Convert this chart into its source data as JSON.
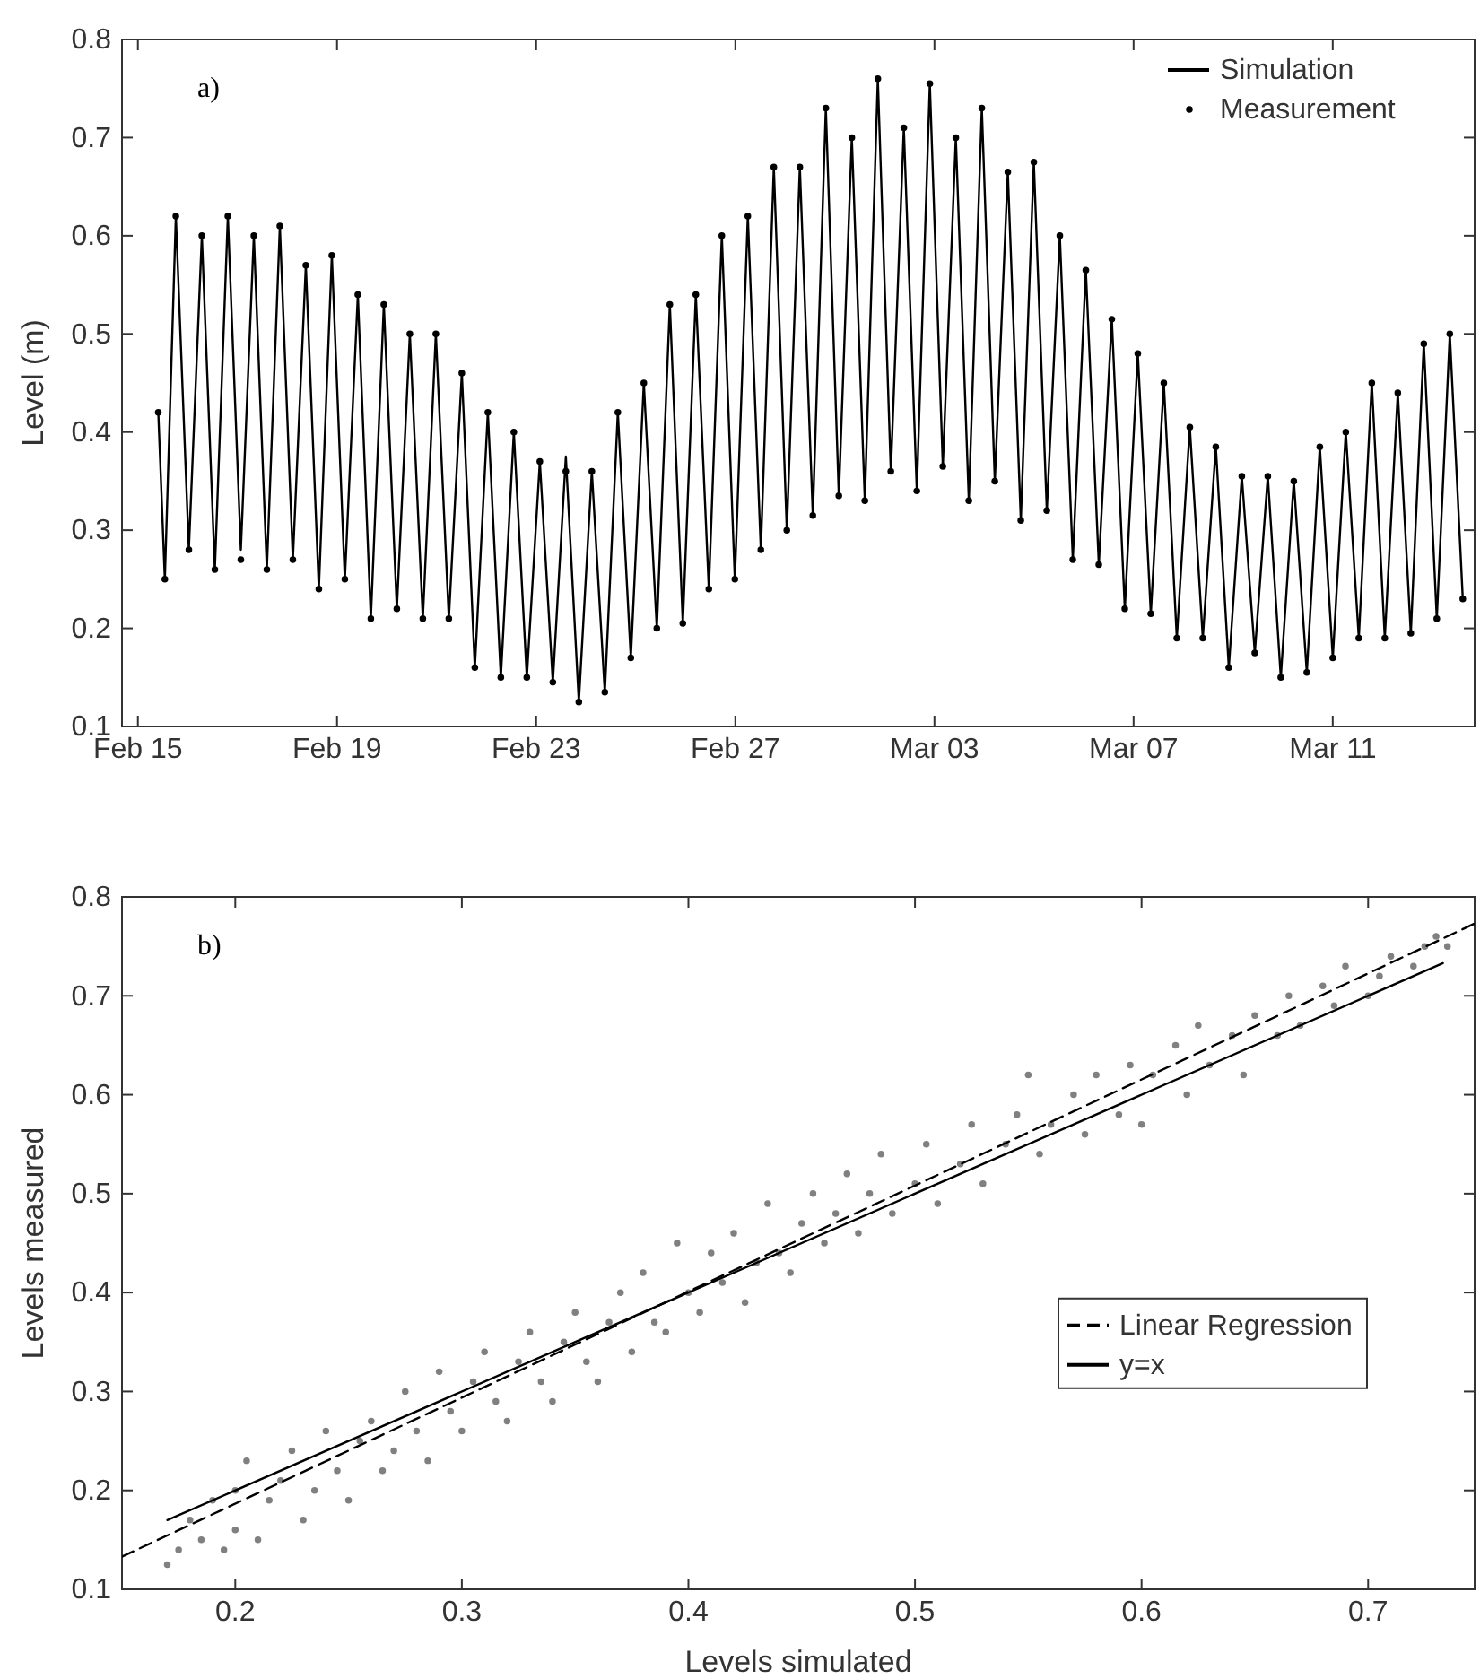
{
  "chart_data": [
    {
      "type": "line",
      "ylabel": "Level (m)",
      "annotations": [
        "a)"
      ],
      "legend": "top right",
      "xlim": [
        "--02-14T16:20",
        "--03-13T20:24"
      ],
      "xticks": [
        {
          "value": "--02-15",
          "label": "Feb 15"
        },
        {
          "value": "--02-19",
          "label": "Feb 19"
        },
        {
          "value": "--02-23",
          "label": "Feb 23"
        },
        {
          "value": "--02-27",
          "label": "Feb 27"
        },
        {
          "value": "--03-03",
          "label": "Mar 03"
        },
        {
          "value": "--03-07",
          "label": "Mar 07"
        },
        {
          "value": "--03-11",
          "label": "Mar 11"
        }
      ],
      "ylim": [
        0.1,
        0.8
      ],
      "yticks": [
        0.1,
        0.2,
        0.3,
        0.4,
        0.5,
        0.6,
        0.7,
        0.8
      ],
      "x": [
        "--02-15T09:50",
        "--02-15T13:00",
        "--02-15T18:18",
        "--02-16T00:34",
        "--02-16T06:50",
        "--02-16T13:06",
        "--02-16T19:22",
        "--02-17T01:38",
        "--02-17T07:54",
        "--02-17T14:10",
        "--02-17T20:26",
        "--02-18T02:42",
        "--02-18T08:58",
        "--02-18T15:14",
        "--02-18T21:30",
        "--02-19T03:46",
        "--02-19T10:02",
        "--02-19T16:18",
        "--02-19T22:34",
        "--02-20T04:50",
        "--02-20T11:06",
        "--02-20T17:22",
        "--02-20T23:38",
        "--02-21T05:54",
        "--02-21T12:10",
        "--02-21T18:26",
        "--02-22T00:42",
        "--02-22T06:58",
        "--02-22T13:14",
        "--02-22T19:30",
        "--02-23T01:46",
        "--02-23T08:02",
        "--02-23T14:18",
        "--02-23T20:34",
        "--02-24T02:50",
        "--02-24T09:06",
        "--02-24T15:22",
        "--02-24T21:38",
        "--02-25T03:54",
        "--02-25T10:10",
        "--02-25T16:26",
        "--02-25T22:42",
        "--02-26T04:58",
        "--02-26T11:14",
        "--02-26T17:30",
        "--02-26T23:46",
        "--02-27T06:02",
        "--02-27T12:18",
        "--02-27T18:34",
        "--02-28T00:50",
        "--02-28T07:06",
        "--02-28T13:22",
        "--02-28T19:38",
        "--03-01T01:54",
        "--03-01T08:10",
        "--03-01T14:26",
        "--03-01T20:42",
        "--03-02T02:58",
        "--03-02T09:14",
        "--03-02T15:30",
        "--03-02T21:46",
        "--03-03T04:02",
        "--03-03T10:18",
        "--03-03T16:34",
        "--03-03T22:50",
        "--03-04T05:06",
        "--03-04T11:22",
        "--03-04T17:38",
        "--03-04T23:54",
        "--03-05T06:10",
        "--03-05T12:26",
        "--03-05T18:42",
        "--03-06T00:58",
        "--03-06T07:14",
        "--03-06T13:30",
        "--03-06T19:46",
        "--03-07T02:02",
        "--03-07T08:18",
        "--03-07T14:34",
        "--03-07T20:50",
        "--03-08T03:06",
        "--03-08T09:22",
        "--03-08T15:38",
        "--03-08T21:54",
        "--03-09T04:10",
        "--03-09T10:26",
        "--03-09T16:42",
        "--03-09T22:58",
        "--03-10T05:14",
        "--03-10T11:30",
        "--03-10T17:46",
        "--03-11T00:02",
        "--03-11T06:18",
        "--03-11T12:34",
        "--03-11T18:50",
        "--03-12T01:06",
        "--03-12T07:22",
        "--03-12T13:38",
        "--03-12T19:54",
        "--03-13T02:10",
        "--03-13T08:26",
        "--03-13T14:42"
      ],
      "series": [
        {
          "name": "Simulation",
          "color": "#000000",
          "line_style": "solid",
          "values": [
            0.42,
            0.25,
            0.62,
            0.28,
            0.6,
            0.26,
            0.62,
            0.28,
            0.6,
            0.26,
            0.61,
            0.27,
            0.57,
            0.24,
            0.58,
            0.25,
            0.54,
            0.21,
            0.53,
            0.22,
            0.5,
            0.21,
            0.5,
            0.21,
            0.46,
            0.16,
            0.42,
            0.15,
            0.4,
            0.15,
            0.37,
            0.145,
            0.375,
            0.125,
            0.36,
            0.135,
            0.42,
            0.17,
            0.45,
            0.2,
            0.53,
            0.205,
            0.54,
            0.24,
            0.6,
            0.25,
            0.62,
            0.28,
            0.67,
            0.3,
            0.67,
            0.315,
            0.73,
            0.335,
            0.7,
            0.33,
            0.76,
            0.36,
            0.71,
            0.34,
            0.755,
            0.365,
            0.7,
            0.33,
            0.73,
            0.35,
            0.665,
            0.31,
            0.675,
            0.32,
            0.6,
            0.27,
            0.565,
            0.265,
            0.515,
            0.22,
            0.48,
            0.215,
            0.45,
            0.19,
            0.405,
            0.19,
            0.385,
            0.16,
            0.355,
            0.175,
            0.355,
            0.15,
            0.35,
            0.155,
            0.385,
            0.17,
            0.4,
            0.19,
            0.45,
            0.19,
            0.44,
            0.195,
            0.49,
            0.21,
            0.5,
            0.23
          ]
        },
        {
          "name": "Measurement",
          "type": "scatter",
          "color": "#000000",
          "marker": "circle",
          "values": [
            0.42,
            0.25,
            0.62,
            0.28,
            0.6,
            0.26,
            0.62,
            0.27,
            0.6,
            0.26,
            0.61,
            0.27,
            0.57,
            0.24,
            0.58,
            0.25,
            0.54,
            0.21,
            0.53,
            0.22,
            0.5,
            0.21,
            0.5,
            0.21,
            0.46,
            0.16,
            0.42,
            0.15,
            0.4,
            0.15,
            0.37,
            0.145,
            0.36,
            0.125,
            0.36,
            0.135,
            0.42,
            0.17,
            0.45,
            0.2,
            0.53,
            0.205,
            0.54,
            0.24,
            0.6,
            0.25,
            0.62,
            0.28,
            0.67,
            0.3,
            0.67,
            0.315,
            0.73,
            0.335,
            0.7,
            0.33,
            0.76,
            0.36,
            0.71,
            0.34,
            0.755,
            0.365,
            0.7,
            0.33,
            0.73,
            0.35,
            0.665,
            0.31,
            0.675,
            0.32,
            0.6,
            0.27,
            0.565,
            0.265,
            0.515,
            0.22,
            0.48,
            0.215,
            0.45,
            0.19,
            0.405,
            0.19,
            0.385,
            0.16,
            0.355,
            0.175,
            0.355,
            0.15,
            0.35,
            0.155,
            0.385,
            0.17,
            0.4,
            0.19,
            0.45,
            0.19,
            0.44,
            0.195,
            0.49,
            0.21,
            0.5,
            0.23
          ]
        }
      ]
    },
    {
      "type": "scatter",
      "xlabel": "Levels simulated",
      "ylabel": "Levels measured",
      "annotations": [
        "b)"
      ],
      "legend": "right",
      "xlim": [
        0.15,
        0.747
      ],
      "xticks": [
        0.2,
        0.3,
        0.4,
        0.5,
        0.6,
        0.7
      ],
      "ylim": [
        0.1,
        0.8
      ],
      "yticks": [
        0.1,
        0.2,
        0.3,
        0.4,
        0.5,
        0.6,
        0.7,
        0.8
      ],
      "series": [
        {
          "color": "#808080",
          "marker": "circle",
          "x": [
            0.17,
            0.175,
            0.18,
            0.185,
            0.19,
            0.195,
            0.2,
            0.2,
            0.205,
            0.21,
            0.215,
            0.22,
            0.225,
            0.23,
            0.235,
            0.24,
            0.245,
            0.25,
            0.255,
            0.26,
            0.265,
            0.27,
            0.275,
            0.28,
            0.285,
            0.29,
            0.295,
            0.3,
            0.305,
            0.31,
            0.315,
            0.32,
            0.325,
            0.33,
            0.335,
            0.34,
            0.345,
            0.35,
            0.355,
            0.36,
            0.365,
            0.37,
            0.375,
            0.38,
            0.385,
            0.39,
            0.395,
            0.4,
            0.405,
            0.41,
            0.415,
            0.42,
            0.425,
            0.43,
            0.435,
            0.44,
            0.445,
            0.45,
            0.455,
            0.46,
            0.465,
            0.47,
            0.475,
            0.48,
            0.485,
            0.49,
            0.5,
            0.505,
            0.51,
            0.52,
            0.525,
            0.53,
            0.54,
            0.545,
            0.55,
            0.555,
            0.56,
            0.57,
            0.575,
            0.58,
            0.59,
            0.595,
            0.6,
            0.605,
            0.615,
            0.62,
            0.625,
            0.63,
            0.64,
            0.645,
            0.65,
            0.66,
            0.665,
            0.67,
            0.68,
            0.685,
            0.69,
            0.7,
            0.705,
            0.71,
            0.72,
            0.725,
            0.73,
            0.735
          ],
          "values": [
            0.125,
            0.14,
            0.17,
            0.15,
            0.19,
            0.14,
            0.16,
            0.2,
            0.23,
            0.15,
            0.19,
            0.21,
            0.24,
            0.17,
            0.2,
            0.26,
            0.22,
            0.19,
            0.25,
            0.27,
            0.22,
            0.24,
            0.3,
            0.26,
            0.23,
            0.32,
            0.28,
            0.26,
            0.31,
            0.34,
            0.29,
            0.27,
            0.33,
            0.36,
            0.31,
            0.29,
            0.35,
            0.38,
            0.33,
            0.31,
            0.37,
            0.4,
            0.34,
            0.42,
            0.37,
            0.36,
            0.45,
            0.4,
            0.38,
            0.44,
            0.41,
            0.46,
            0.39,
            0.43,
            0.49,
            0.44,
            0.42,
            0.47,
            0.5,
            0.45,
            0.48,
            0.52,
            0.46,
            0.5,
            0.54,
            0.48,
            0.51,
            0.55,
            0.49,
            0.53,
            0.57,
            0.51,
            0.55,
            0.58,
            0.62,
            0.54,
            0.57,
            0.6,
            0.56,
            0.62,
            0.58,
            0.63,
            0.57,
            0.62,
            0.65,
            0.6,
            0.67,
            0.63,
            0.66,
            0.62,
            0.68,
            0.66,
            0.7,
            0.67,
            0.71,
            0.69,
            0.73,
            0.7,
            0.72,
            0.74,
            0.73,
            0.75,
            0.76,
            0.75
          ]
        },
        {
          "name": "Linear Regression",
          "type": "line",
          "color": "#000000",
          "line_style": "dashed",
          "x": [
            0.15,
            0.747
          ],
          "values": [
            0.133,
            0.773
          ]
        },
        {
          "name": "y=x",
          "type": "line",
          "color": "#000000",
          "line_style": "solid",
          "x": [
            0.17,
            0.733
          ],
          "values": [
            0.17,
            0.733
          ]
        }
      ]
    }
  ]
}
